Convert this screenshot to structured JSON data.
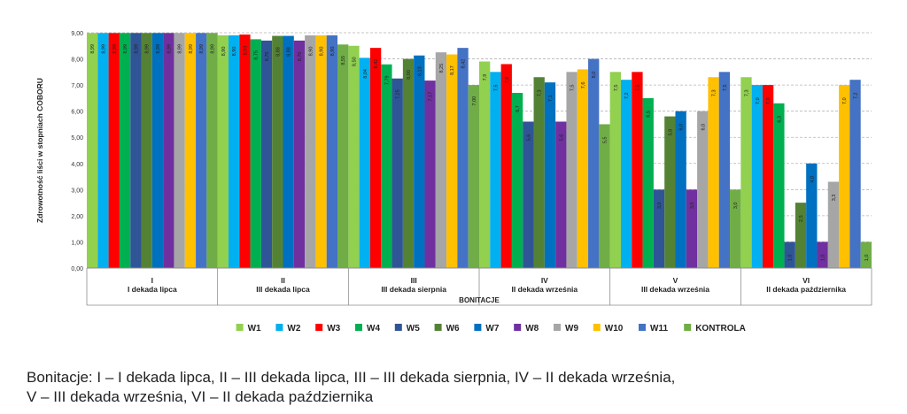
{
  "chart_data": {
    "type": "bar",
    "ylabel": "Zdrowotność liści w stopniach COBORU",
    "xlabel": "BONITACJE",
    "ylim": [
      0,
      9
    ],
    "y_ticks": [
      "0,00",
      "1,00",
      "2,00",
      "3,00",
      "4,00",
      "5,00",
      "6,00",
      "7,00",
      "8,00",
      "9,00"
    ],
    "grid": "horizontal dashed",
    "legend_position": "bottom",
    "categories": [
      {
        "roman": "I",
        "label": "I dekada lipca"
      },
      {
        "roman": "II",
        "label": "III dekada lipca"
      },
      {
        "roman": "III",
        "label": "III dekada sierpnia"
      },
      {
        "roman": "IV",
        "label": "II dekada września"
      },
      {
        "roman": "V",
        "label": "III dekada września"
      },
      {
        "roman": "VI",
        "label": "II dekada października"
      }
    ],
    "series": [
      {
        "name": "W1",
        "color": "#92d050",
        "values": [
          8.99,
          8.9,
          8.5,
          7.9,
          7.5,
          7.3
        ],
        "labels": [
          "8,99",
          "8,90",
          "8,50",
          "7,9",
          "7,5",
          "7,3"
        ]
      },
      {
        "name": "W2",
        "color": "#00b0f0",
        "values": [
          8.99,
          8.9,
          8.04,
          7.5,
          7.2,
          7.0
        ],
        "labels": [
          "8,99",
          "8,90",
          "8,04",
          "7,5",
          "7,2",
          "7,0"
        ]
      },
      {
        "name": "W3",
        "color": "#ff0000",
        "values": [
          8.99,
          8.93,
          8.42,
          7.8,
          7.5,
          7.0
        ],
        "labels": [
          "8,99",
          "8,93",
          "8,42",
          "7,8",
          "7,5",
          "7,0"
        ]
      },
      {
        "name": "W4",
        "color": "#00b050",
        "values": [
          8.99,
          8.75,
          7.79,
          6.7,
          6.5,
          6.3
        ],
        "labels": [
          "8,99",
          "8,75",
          "7,79",
          "6,7",
          "6,5",
          "6,3"
        ]
      },
      {
        "name": "W5",
        "color": "#2f5597",
        "values": [
          8.99,
          8.7,
          7.25,
          5.6,
          3.0,
          1.0
        ],
        "labels": [
          "8,99",
          "8,70",
          "7,25",
          "5,6",
          "3,0",
          "1,0"
        ]
      },
      {
        "name": "W6",
        "color": "#548235",
        "values": [
          8.99,
          8.88,
          8.0,
          7.3,
          5.8,
          2.5
        ],
        "labels": [
          "8,99",
          "8,88",
          "8,00",
          "7,3",
          "5,8",
          "2,5"
        ]
      },
      {
        "name": "W7",
        "color": "#0070c0",
        "values": [
          8.99,
          8.88,
          8.13,
          7.1,
          6.0,
          4.0
        ],
        "labels": [
          "8,99",
          "8,88",
          "8,13",
          "7,1",
          "6,0",
          "4,0"
        ]
      },
      {
        "name": "W8",
        "color": "#7030a0",
        "values": [
          8.99,
          8.7,
          7.17,
          5.6,
          3.0,
          1.0
        ],
        "labels": [
          "8,99",
          "8,70",
          "7,17",
          "5,6",
          "3,0",
          "1,0"
        ]
      },
      {
        "name": "W9",
        "color": "#a6a6a6",
        "values": [
          8.99,
          8.9,
          8.25,
          7.5,
          6.0,
          3.3
        ],
        "labels": [
          "8,99",
          "8,90",
          "8,25",
          "7,5",
          "6,0",
          "3,3"
        ]
      },
      {
        "name": "W10",
        "color": "#ffc000",
        "values": [
          8.99,
          8.9,
          8.17,
          7.6,
          7.3,
          7.0
        ],
        "labels": [
          "8,99",
          "8,90",
          "8,17",
          "7,6",
          "7,3",
          "7,0"
        ]
      },
      {
        "name": "W11",
        "color": "#4472c4",
        "values": [
          8.99,
          8.9,
          8.42,
          8.0,
          7.5,
          7.2
        ],
        "labels": [
          "8,99",
          "8,90",
          "8,42",
          "8,0",
          "7,5",
          "7,2"
        ]
      },
      {
        "name": "KONTROLA",
        "color": "#70ad47",
        "values": [
          8.99,
          8.55,
          7.0,
          5.5,
          3.0,
          1.0
        ],
        "labels": [
          "8,99",
          "8,55",
          "7,00",
          "5,5",
          "3,0",
          "1,0"
        ]
      }
    ]
  },
  "caption": {
    "line1": "Bonitacje: I – I dekada lipca, II – III dekada lipca, III – III dekada sierpnia, IV – II dekada września,",
    "line2": "V – III dekada września, VI – II dekada października"
  }
}
